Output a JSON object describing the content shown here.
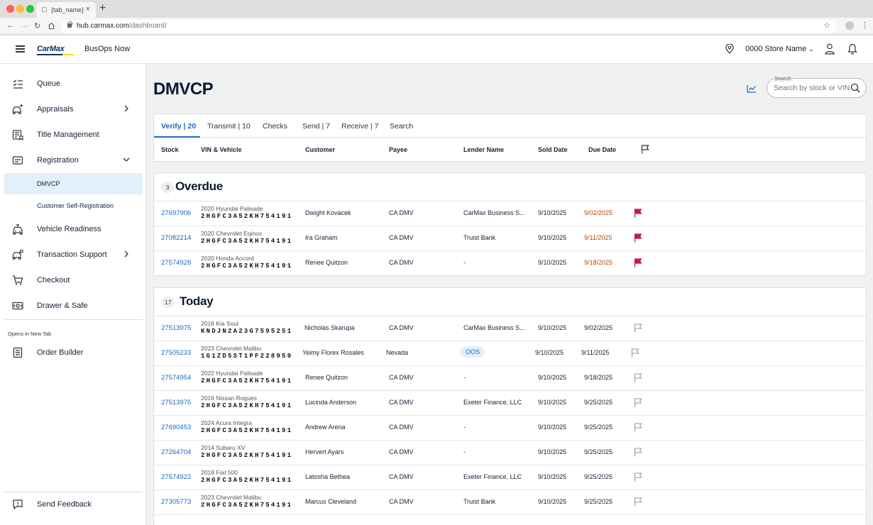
{
  "browser": {
    "tab_title": "{tab_name}",
    "url_host": "hub.carmax.com",
    "url_path": "/dashboard/"
  },
  "header": {
    "logo": "CarMax",
    "app_name": "BusOps Now",
    "store_name": "0000 Store Name"
  },
  "sidebar": {
    "items": [
      {
        "label": "Queue",
        "icon": "queue-icon"
      },
      {
        "label": "Appraisals",
        "icon": "car-plus-icon",
        "chevron": "right"
      },
      {
        "label": "Title Management",
        "icon": "title-icon"
      },
      {
        "label": "Registration",
        "icon": "registration-icon",
        "chevron": "down"
      },
      {
        "label": "DMVCP",
        "sub": true,
        "active": true
      },
      {
        "label": "Customer Self-Registration",
        "sub": true
      },
      {
        "label": "Vehicle Readiness",
        "icon": "car-ready-icon"
      },
      {
        "label": "Transaction Support",
        "icon": "car-support-icon",
        "chevron": "right"
      },
      {
        "label": "Checkout",
        "icon": "cart-icon"
      },
      {
        "label": "Drawer & Safe",
        "icon": "cash-icon"
      }
    ],
    "new_tab_caption": "Opens in New Tab",
    "order_builder": "Order Builder",
    "feedback": "Send Feedback"
  },
  "page": {
    "title": "DMVCP",
    "search_label": "Search",
    "search_placeholder": "Search by stock or VIN"
  },
  "tabs": [
    {
      "label": "Verify | 20",
      "active": true
    },
    {
      "label": "Transmit | 10"
    },
    {
      "label": "Checks"
    },
    {
      "label": "Send | 7"
    },
    {
      "label": "Receive | 7"
    },
    {
      "label": "Search"
    }
  ],
  "columns": [
    "Stock",
    "VIN & Vehicle",
    "Customer",
    "Payee",
    "Lender Name",
    "Sold Date",
    "Due Date"
  ],
  "sections": [
    {
      "count": "3",
      "title": "Overdue",
      "rows": [
        {
          "stock": "27697906",
          "vehicle": "2020 Hyundai Palisade",
          "vin": "2HGFC3A52KH754191",
          "customer": "Dwight Kovacek",
          "payee": "CA DMV",
          "lender": "CarMax Business S...",
          "sold": "9/10/2025",
          "due": "9/02/2025",
          "flagged": true
        },
        {
          "stock": "27082214",
          "vehicle": "2020 Chevrolet Eqinox",
          "vin": "2HGFC3A52KH754191",
          "customer": "Ira Graham",
          "payee": "CA DMV",
          "lender": "Truist Bank",
          "sold": "9/10/2025",
          "due": "9/11/2025",
          "flagged": true
        },
        {
          "stock": "27574928",
          "vehicle": "2020 Honda Accord",
          "vin": "2HGFC3A52KH754191",
          "customer": "Renee Quitzon",
          "payee": "CA DMV",
          "lender": "-",
          "sold": "9/10/2025",
          "due": "9/18/2025",
          "flagged": true
        }
      ]
    },
    {
      "count": "17",
      "title": "Today",
      "rows": [
        {
          "stock": "27513975",
          "vehicle": "2016 Kia Soul",
          "vin": "KNDJN2A23G7595251",
          "customer": "Nicholas Skarupa",
          "payee": "CA DMV",
          "lender": "CarMax Business S...",
          "sold": "9/10/2025",
          "due": "9/02/2025",
          "flagged": false
        },
        {
          "stock": "27505233",
          "vehicle": "2023 Chevrolet Malibu",
          "vin": "1G1ZD5ST1PF228959",
          "customer": "Yeimy Florex Rosales",
          "payee": "Nevada",
          "lender": "OOS",
          "lender_badge": true,
          "sold": "9/10/2025",
          "due": "9/11/2025",
          "flagged": false
        },
        {
          "stock": "27574954",
          "vehicle": "2022 Hyundai Palisade",
          "vin": "2HGFC3A52KH754191",
          "customer": "Renee Quitzon",
          "payee": "CA DMV",
          "lender": "-",
          "sold": "9/10/2025",
          "due": "9/18/2025",
          "flagged": false
        },
        {
          "stock": "27513975",
          "vehicle": "2016 Nissan Rogues",
          "vin": "2HGFC3A52KH754191",
          "customer": "Lucinda Anderson",
          "payee": "CA DMV",
          "lender": "Exeter Finance, LLC",
          "sold": "9/10/2025",
          "due": "9/25/2025",
          "flagged": false
        },
        {
          "stock": "27690453",
          "vehicle": "2024 Acura Integra",
          "vin": "2HGFC3A52KH754191",
          "customer": "Andrew Arena",
          "payee": "CA DMV",
          "lender": "-",
          "sold": "9/10/2025",
          "due": "9/25/2025",
          "flagged": false
        },
        {
          "stock": "27264704",
          "vehicle": "2014 Subaru XV",
          "vin": "2HGFC3A52KH754191",
          "customer": "Hervert Ayars",
          "payee": "CA DMV",
          "lender": "-",
          "sold": "9/10/2025",
          "due": "9/25/2025",
          "flagged": false
        },
        {
          "stock": "27574922",
          "vehicle": "2018 Fiat 500",
          "vin": "2HGFC3A52KH754191",
          "customer": "Latosha Bethea",
          "payee": "CA DMV",
          "lender": "Exeter Finance, LLC",
          "sold": "9/10/2025",
          "due": "9/25/2025",
          "flagged": false
        },
        {
          "stock": "27305773",
          "vehicle": "2023 Chevrolet Malibu",
          "vin": "2HGFC3A52KH754191",
          "customer": "Marcus Cleveland",
          "payee": "CA DMV",
          "lender": "Truist Bank",
          "sold": "9/10/2025",
          "due": "9/25/2025",
          "flagged": false
        }
      ]
    }
  ],
  "colors": {
    "accent": "#1e66c1",
    "overdue_due": "#b54708",
    "flag_filled": "#c2185b",
    "active_nav": "#e3f0fa"
  }
}
